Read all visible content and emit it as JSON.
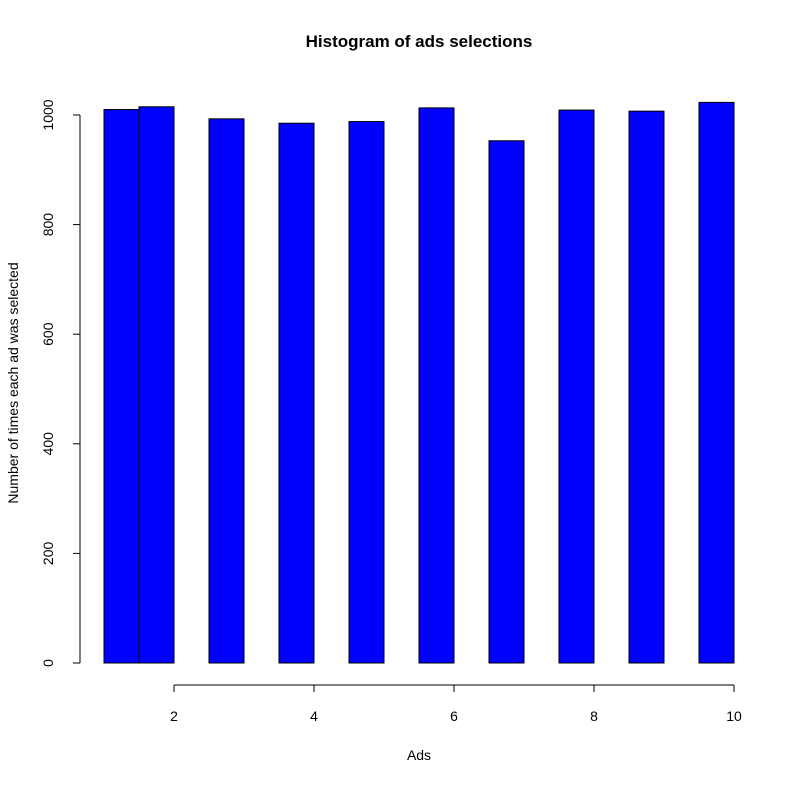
{
  "chart_data": {
    "type": "bar",
    "title": "Histogram of ads selections",
    "xlabel": "Ads",
    "ylabel": "Number of times each ad was selected",
    "bar_color": "#0000ff",
    "grid": false,
    "legend": "none",
    "xlim": [
      1,
      10
    ],
    "ylim": [
      0,
      1000
    ],
    "x_ticks": [
      2,
      4,
      6,
      8,
      10
    ],
    "y_ticks": [
      0,
      200,
      400,
      600,
      800,
      1000
    ],
    "bars": [
      {
        "x_start": 1.0,
        "x_end": 1.5,
        "value": 1010
      },
      {
        "x_start": 1.5,
        "x_end": 2.0,
        "value": 1015
      },
      {
        "x_start": 2.5,
        "x_end": 3.0,
        "value": 993
      },
      {
        "x_start": 3.5,
        "x_end": 4.0,
        "value": 985
      },
      {
        "x_start": 4.5,
        "x_end": 5.0,
        "value": 988
      },
      {
        "x_start": 5.5,
        "x_end": 6.0,
        "value": 1013
      },
      {
        "x_start": 6.5,
        "x_end": 7.0,
        "value": 953
      },
      {
        "x_start": 7.5,
        "x_end": 8.0,
        "value": 1009
      },
      {
        "x_start": 8.5,
        "x_end": 9.0,
        "value": 1007
      },
      {
        "x_start": 9.5,
        "x_end": 10.0,
        "value": 1023
      }
    ]
  }
}
